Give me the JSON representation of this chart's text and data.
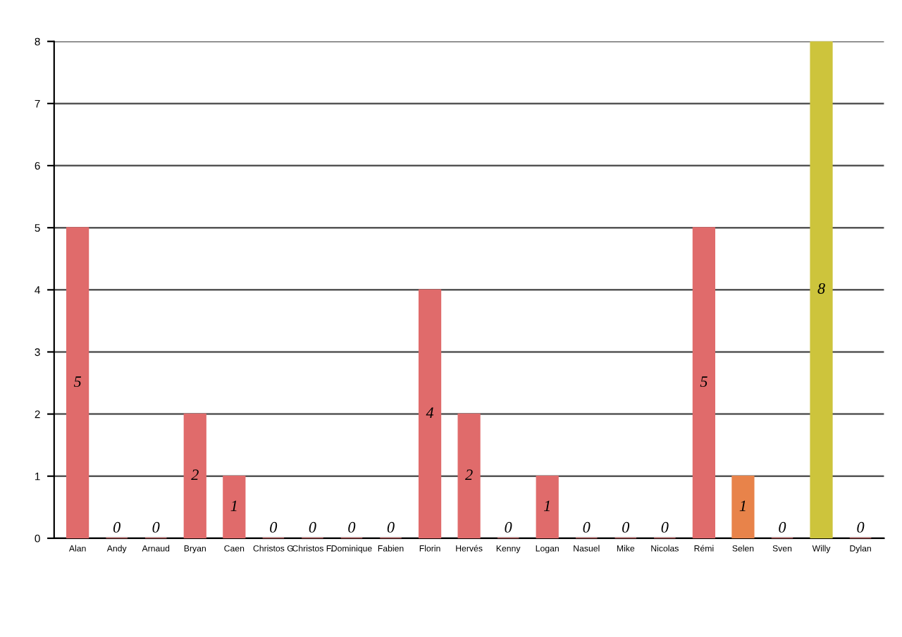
{
  "chart_data": {
    "type": "bar",
    "categories": [
      "Alan",
      "Andy",
      "Arnaud",
      "Bryan",
      "Caen",
      "Christos G",
      "Christos F.",
      "Dominique",
      "Fabien",
      "Florin",
      "Hervés",
      "Kenny",
      "Logan",
      "Nasuel",
      "Mike",
      "Nicolas",
      "Rémi",
      "Selen",
      "Sven",
      "Willy",
      "Dylan"
    ],
    "values": [
      5,
      0,
      0,
      2,
      1,
      0,
      0,
      0,
      0,
      4,
      2,
      0,
      1,
      0,
      0,
      0,
      5,
      1,
      0,
      8,
      0
    ],
    "colors": [
      "#e06b6b",
      "#e06b6b",
      "#e06b6b",
      "#e06b6b",
      "#e06b6b",
      "#e06b6b",
      "#e06b6b",
      "#e06b6b",
      "#e06b6b",
      "#e06b6b",
      "#e06b6b",
      "#e06b6b",
      "#e06b6b",
      "#e06b6b",
      "#e06b6b",
      "#e06b6b",
      "#e06b6b",
      "#e8834a",
      "#e06b6b",
      "#cdc43c",
      "#e06b6b"
    ],
    "ylim": [
      0,
      8
    ],
    "yticks": [
      0,
      1,
      2,
      3,
      4,
      5,
      6,
      7,
      8
    ],
    "grid": "y",
    "data_labels": true
  }
}
